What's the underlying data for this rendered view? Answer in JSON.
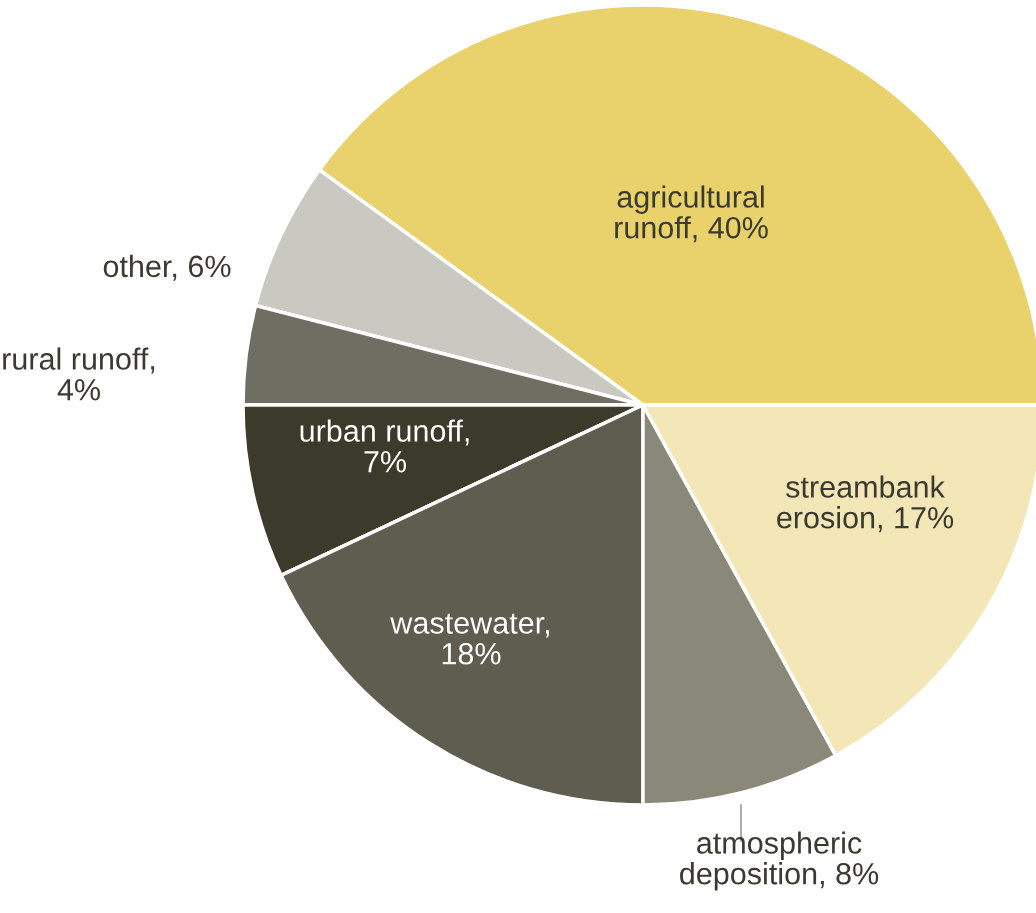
{
  "chart_data": {
    "type": "pie",
    "categories": [
      "agricultural\nrunoff, 40%",
      "other, 6%",
      "rural runoff,\n4%",
      "urban runoff,\n7%",
      "wastewater,\n18%",
      "atmospheric\ndeposition, 8%",
      "streambank\nerosion, 17%"
    ],
    "values": [
      40,
      6,
      4,
      7,
      18,
      8,
      17
    ],
    "colors": [
      "#e9d16c",
      "#c9c8c1",
      "#6f6e62",
      "#3b3a2b",
      "#5f5d4f",
      "#8a8979",
      "#f4e7b7"
    ]
  }
}
